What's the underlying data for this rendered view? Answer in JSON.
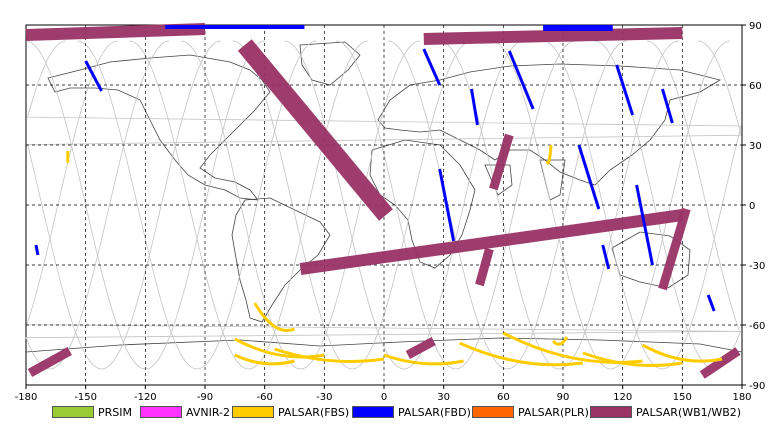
{
  "map": {
    "x_ticks": [
      "-180",
      "-150",
      "-120",
      "-90",
      "-60",
      "-30",
      "0",
      "30",
      "60",
      "90",
      "120",
      "150",
      "180"
    ],
    "y_ticks": [
      "90",
      "60",
      "30",
      "0",
      "-30",
      "-60",
      "-90"
    ],
    "lon_range": [
      -180,
      180
    ],
    "lat_range": [
      -90,
      90
    ],
    "grid": "dashed",
    "colors": {
      "PRSIM": "#99cc33",
      "AVNIR-2": "#ff33ff",
      "PALSAR(FBS)": "#ffcc00",
      "PALSAR(FBD)": "#0000ff",
      "PALSAR(PLR)": "#ff6600",
      "PALSAR(WB1/WB2)": "#993366"
    },
    "wide_swaths": [
      {
        "sensor": "PALSAR(WB1/WB2)",
        "lat1": -5,
        "lon1": 1,
        "lat2": 80,
        "lon2": -70,
        "width": 6
      },
      {
        "sensor": "PALSAR(WB1/WB2)",
        "lat1": 85,
        "lon1": -180,
        "lat2": 88,
        "lon2": -90,
        "width": 4
      },
      {
        "sensor": "PALSAR(WB1/WB2)",
        "lat1": 83,
        "lon1": 20,
        "lat2": 86,
        "lon2": 150,
        "width": 4
      },
      {
        "sensor": "PALSAR(WB1/WB2)",
        "lat1": -32,
        "lon1": -42,
        "lat2": -5,
        "lon2": 150,
        "width": 4
      },
      {
        "sensor": "PALSAR(WB1/WB2)",
        "lat1": -42,
        "lon1": 140,
        "lat2": -2,
        "lon2": 152,
        "width": 3
      },
      {
        "sensor": "PALSAR(WB1/WB2)",
        "lat1": 8,
        "lon1": 55,
        "lat2": 35,
        "lon2": 63,
        "width": 3
      },
      {
        "sensor": "PALSAR(WB1/WB2)",
        "lat1": -40,
        "lon1": 48,
        "lat2": -22,
        "lon2": 53,
        "width": 3
      },
      {
        "sensor": "PALSAR(WB1/WB2)",
        "lat1": -84,
        "lon1": -178,
        "lat2": -73,
        "lon2": -158,
        "width": 3
      },
      {
        "sensor": "PALSAR(WB1/WB2)",
        "lat1": -75,
        "lon1": 12,
        "lat2": -68,
        "lon2": 25,
        "width": 3
      },
      {
        "sensor": "PALSAR(WB1/WB2)",
        "lat1": -85,
        "lon1": 160,
        "lat2": -73,
        "lon2": 178,
        "width": 3
      }
    ],
    "fbd_strips": [
      {
        "lat1": 72,
        "lon1": -150,
        "lat2": 57,
        "lon2": -142
      },
      {
        "lat1": 78,
        "lon1": 20,
        "lat2": 60,
        "lon2": 28
      },
      {
        "lat1": 77,
        "lon1": 63,
        "lat2": 48,
        "lon2": 75
      },
      {
        "lat1": 58,
        "lon1": 44,
        "lat2": 40,
        "lon2": 47
      },
      {
        "lat1": 70,
        "lon1": 117,
        "lat2": 45,
        "lon2": 125
      },
      {
        "lat1": 58,
        "lon1": 140,
        "lat2": 41,
        "lon2": 145
      },
      {
        "lat1": 18,
        "lon1": 28,
        "lat2": -18,
        "lon2": 35
      },
      {
        "lat1": 30,
        "lon1": 98,
        "lat2": -2,
        "lon2": 108
      },
      {
        "lat1": 10,
        "lon1": 127,
        "lat2": -30,
        "lon2": 135
      },
      {
        "lat1": -20,
        "lon1": 110,
        "lat2": -32,
        "lon2": 113
      },
      {
        "lat1": -45,
        "lon1": 163,
        "lat2": -53,
        "lon2": 166
      },
      {
        "lat1": -20,
        "lon1": -175,
        "lat2": -25,
        "lon2": -174
      }
    ],
    "fbs_arcs": [
      {
        "lat1": -49,
        "lon1": -65,
        "lat2": -62,
        "lon2": -45
      },
      {
        "lat1": -67,
        "lon1": -75,
        "lat2": -75,
        "lon2": -30
      },
      {
        "lat1": -72,
        "lon1": -55,
        "lat2": -77,
        "lon2": 0
      },
      {
        "lat1": -75,
        "lon1": -75,
        "lat2": -78,
        "lon2": -45
      },
      {
        "lat1": -75,
        "lon1": 0,
        "lat2": -78,
        "lon2": 40
      },
      {
        "lat1": -69,
        "lon1": 38,
        "lat2": -79,
        "lon2": 100
      },
      {
        "lat1": -64,
        "lon1": 60,
        "lat2": -78,
        "lon2": 130
      },
      {
        "lat1": -74,
        "lon1": 100,
        "lat2": -79,
        "lon2": 150
      },
      {
        "lat1": -70,
        "lon1": 130,
        "lat2": -77,
        "lon2": 170
      },
      {
        "lat1": -68,
        "lon1": 85,
        "lat2": -66,
        "lon2": 92
      },
      {
        "lat1": 30,
        "lon1": 84,
        "lat2": 22,
        "lon2": 82
      },
      {
        "lat1": 27,
        "lon1": -159,
        "lat2": 23,
        "lon2": -159
      }
    ]
  },
  "legend": [
    {
      "label": "PRSIM",
      "color": "#99cc33"
    },
    {
      "label": "AVNIR-2",
      "color": "#ff33ff"
    },
    {
      "label": "PALSAR(FBS)",
      "color": "#ffcc00"
    },
    {
      "label": "PALSAR(FBD)",
      "color": "#0000ff"
    },
    {
      "label": "PALSAR(PLR)",
      "color": "#ff6600"
    },
    {
      "label": "PALSAR(WB1/WB2)",
      "color": "#993366"
    }
  ]
}
